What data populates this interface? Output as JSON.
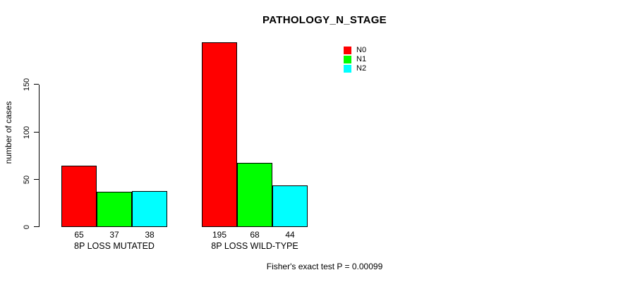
{
  "chart_data": {
    "type": "bar",
    "title": "PATHOLOGY_N_STAGE",
    "ylabel": "number of cases",
    "xlabel": "",
    "categories": [
      "8P LOSS MUTATED",
      "8P LOSS WILD-TYPE"
    ],
    "series": [
      {
        "name": "N0",
        "color": "#ff0000",
        "values": [
          65,
          195
        ]
      },
      {
        "name": "N1",
        "color": "#00ff00",
        "values": [
          37,
          68
        ]
      },
      {
        "name": "N2",
        "color": "#00ffff",
        "values": [
          38,
          44
        ]
      }
    ],
    "yticks": [
      0,
      50,
      100,
      150
    ],
    "ylim": [
      0,
      200
    ],
    "grid": false,
    "legend_position": "top-right",
    "value_labels_shown": true,
    "annotation": "Fisher's exact test P = 0.00099",
    "background_color": "#ffffff",
    "axis_color": "#000000",
    "text_color": "#000000"
  }
}
